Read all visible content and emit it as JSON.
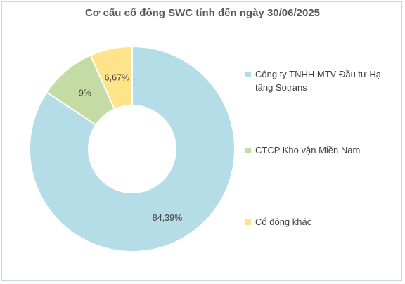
{
  "chart_data": {
    "type": "pie",
    "variant": "donut",
    "title": "Cơ cấu cổ đông SWC tính đến ngày 30/06/2025",
    "legend_position": "right",
    "slices": [
      {
        "label": "Công ty TNHH MTV Đầu tư Hạ tầng Sotrans",
        "value": 84.39,
        "display": "84,39%",
        "color": "#b4dde8"
      },
      {
        "label": "CTCP Kho vận Miền Nam",
        "value": 9,
        "display": "9%",
        "color": "#c5dba4"
      },
      {
        "label": "Cổ đông khác",
        "value": 6.67,
        "display": "6,67%",
        "color": "#fde38a"
      }
    ]
  }
}
